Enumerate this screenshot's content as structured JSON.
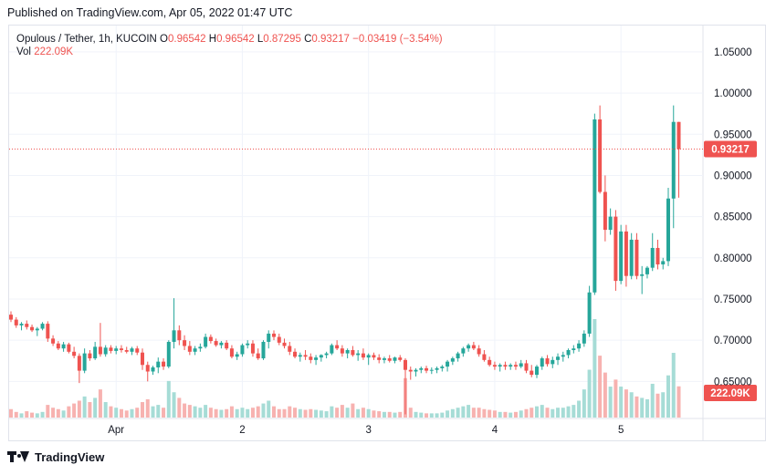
{
  "published": "Published on TradingView.com, Apr 05, 2022 01:47 UTC",
  "legend": {
    "symbol": "Opulous / Tether, 1h, KUCOIN",
    "o_label": "O",
    "o_value": "0.96542",
    "h_label": "H",
    "h_value": "0.96542",
    "l_label": "L",
    "l_value": "0.87295",
    "c_label": "C",
    "c_value": "0.93217",
    "change": "−0.03419 (−3.54%)",
    "vol_label": "Vol",
    "vol_value": "222.09K"
  },
  "footer": {
    "brand": "TradingView"
  },
  "colors": {
    "up": "#26a69a",
    "down": "#ef5350",
    "up_volume": "#a6dcd6",
    "down_volume": "#f7b2b0",
    "grid": "#f0f3fa"
  },
  "chart_data": {
    "type": "candlestick",
    "x_tick_labels": [
      "Apr",
      "2",
      "3",
      "4",
      "5"
    ],
    "y_ticks": [
      "0.65000",
      "0.70000",
      "0.75000",
      "0.80000",
      "0.85000",
      "0.90000",
      "0.95000",
      "1.00000",
      "1.05000"
    ],
    "ylim": [
      0.605,
      1.082
    ],
    "last_price_label": "0.93217",
    "last_volume_label": "222.09K",
    "volume_max": 700,
    "candles": [
      [
        0,
        0.731,
        0.735,
        0.722,
        0.725,
        60
      ],
      [
        1,
        0.725,
        0.728,
        0.715,
        0.718,
        40
      ],
      [
        2,
        0.718,
        0.722,
        0.712,
        0.72,
        30
      ],
      [
        3,
        0.72,
        0.724,
        0.713,
        0.716,
        45
      ],
      [
        4,
        0.716,
        0.719,
        0.71,
        0.712,
        35
      ],
      [
        5,
        0.712,
        0.716,
        0.705,
        0.714,
        30
      ],
      [
        6,
        0.714,
        0.722,
        0.712,
        0.72,
        40
      ],
      [
        7,
        0.72,
        0.723,
        0.698,
        0.702,
        90
      ],
      [
        8,
        0.702,
        0.706,
        0.693,
        0.696,
        70
      ],
      [
        9,
        0.696,
        0.699,
        0.688,
        0.69,
        60
      ],
      [
        10,
        0.69,
        0.698,
        0.686,
        0.695,
        50
      ],
      [
        11,
        0.695,
        0.697,
        0.684,
        0.686,
        80
      ],
      [
        12,
        0.686,
        0.692,
        0.678,
        0.681,
        100
      ],
      [
        13,
        0.681,
        0.684,
        0.648,
        0.663,
        120
      ],
      [
        14,
        0.663,
        0.69,
        0.66,
        0.684,
        150
      ],
      [
        15,
        0.684,
        0.688,
        0.675,
        0.678,
        110
      ],
      [
        16,
        0.678,
        0.698,
        0.676,
        0.692,
        140
      ],
      [
        17,
        0.692,
        0.721,
        0.68,
        0.683,
        200
      ],
      [
        18,
        0.683,
        0.694,
        0.68,
        0.691,
        110
      ],
      [
        19,
        0.691,
        0.694,
        0.684,
        0.687,
        80
      ],
      [
        20,
        0.687,
        0.693,
        0.683,
        0.69,
        70
      ],
      [
        21,
        0.69,
        0.694,
        0.685,
        0.688,
        60
      ],
      [
        22,
        0.688,
        0.692,
        0.684,
        0.686,
        50
      ],
      [
        23,
        0.686,
        0.692,
        0.682,
        0.69,
        60
      ],
      [
        24,
        0.69,
        0.693,
        0.682,
        0.685,
        70
      ],
      [
        25,
        0.685,
        0.69,
        0.664,
        0.67,
        110
      ],
      [
        26,
        0.67,
        0.674,
        0.65,
        0.662,
        130
      ],
      [
        27,
        0.662,
        0.669,
        0.658,
        0.667,
        80
      ],
      [
        28,
        0.667,
        0.679,
        0.66,
        0.674,
        90
      ],
      [
        29,
        0.674,
        0.678,
        0.664,
        0.668,
        70
      ],
      [
        30,
        0.668,
        0.7,
        0.666,
        0.698,
        260
      ],
      [
        31,
        0.698,
        0.751,
        0.69,
        0.712,
        180
      ],
      [
        32,
        0.712,
        0.718,
        0.694,
        0.7,
        140
      ],
      [
        33,
        0.7,
        0.706,
        0.688,
        0.693,
        100
      ],
      [
        34,
        0.693,
        0.699,
        0.682,
        0.686,
        90
      ],
      [
        35,
        0.686,
        0.693,
        0.682,
        0.69,
        80
      ],
      [
        36,
        0.69,
        0.696,
        0.686,
        0.692,
        70
      ],
      [
        37,
        0.692,
        0.708,
        0.69,
        0.704,
        90
      ],
      [
        38,
        0.704,
        0.707,
        0.696,
        0.699,
        70
      ],
      [
        39,
        0.699,
        0.702,
        0.692,
        0.694,
        60
      ],
      [
        40,
        0.694,
        0.699,
        0.69,
        0.697,
        55
      ],
      [
        41,
        0.697,
        0.7,
        0.688,
        0.69,
        60
      ],
      [
        42,
        0.69,
        0.694,
        0.678,
        0.68,
        80
      ],
      [
        43,
        0.68,
        0.686,
        0.676,
        0.683,
        60
      ],
      [
        44,
        0.683,
        0.696,
        0.68,
        0.694,
        70
      ],
      [
        45,
        0.694,
        0.7,
        0.69,
        0.696,
        60
      ],
      [
        46,
        0.696,
        0.7,
        0.68,
        0.684,
        70
      ],
      [
        47,
        0.684,
        0.69,
        0.676,
        0.678,
        80
      ],
      [
        48,
        0.678,
        0.7,
        0.676,
        0.698,
        100
      ],
      [
        49,
        0.698,
        0.712,
        0.69,
        0.708,
        120
      ],
      [
        50,
        0.708,
        0.712,
        0.7,
        0.704,
        80
      ],
      [
        51,
        0.704,
        0.708,
        0.694,
        0.697,
        60
      ],
      [
        52,
        0.697,
        0.702,
        0.69,
        0.693,
        60
      ],
      [
        53,
        0.693,
        0.698,
        0.682,
        0.686,
        80
      ],
      [
        54,
        0.686,
        0.69,
        0.678,
        0.68,
        70
      ],
      [
        55,
        0.68,
        0.685,
        0.674,
        0.682,
        60
      ],
      [
        56,
        0.682,
        0.688,
        0.676,
        0.68,
        55
      ],
      [
        57,
        0.68,
        0.684,
        0.672,
        0.676,
        60
      ],
      [
        58,
        0.676,
        0.682,
        0.67,
        0.679,
        55
      ],
      [
        59,
        0.679,
        0.683,
        0.674,
        0.682,
        50
      ],
      [
        60,
        0.682,
        0.686,
        0.678,
        0.684,
        45
      ],
      [
        61,
        0.684,
        0.696,
        0.682,
        0.694,
        80
      ],
      [
        62,
        0.694,
        0.7,
        0.688,
        0.69,
        70
      ],
      [
        63,
        0.69,
        0.694,
        0.68,
        0.684,
        90
      ],
      [
        64,
        0.684,
        0.69,
        0.678,
        0.688,
        70
      ],
      [
        65,
        0.688,
        0.693,
        0.68,
        0.682,
        100
      ],
      [
        66,
        0.682,
        0.688,
        0.675,
        0.684,
        60
      ],
      [
        67,
        0.684,
        0.69,
        0.676,
        0.679,
        70
      ],
      [
        68,
        0.679,
        0.684,
        0.67,
        0.682,
        60
      ],
      [
        69,
        0.682,
        0.685,
        0.676,
        0.679,
        50
      ],
      [
        70,
        0.679,
        0.683,
        0.672,
        0.676,
        45
      ],
      [
        71,
        0.676,
        0.68,
        0.672,
        0.678,
        40
      ],
      [
        72,
        0.678,
        0.682,
        0.673,
        0.675,
        40
      ],
      [
        73,
        0.675,
        0.68,
        0.672,
        0.679,
        35
      ],
      [
        74,
        0.679,
        0.682,
        0.674,
        0.676,
        40
      ],
      [
        75,
        0.676,
        0.678,
        0.61,
        0.664,
        280
      ],
      [
        76,
        0.664,
        0.668,
        0.652,
        0.662,
        70
      ],
      [
        77,
        0.662,
        0.666,
        0.656,
        0.664,
        40
      ],
      [
        78,
        0.664,
        0.668,
        0.66,
        0.666,
        35
      ],
      [
        79,
        0.666,
        0.669,
        0.66,
        0.663,
        30
      ],
      [
        80,
        0.663,
        0.667,
        0.659,
        0.664,
        30
      ],
      [
        81,
        0.664,
        0.668,
        0.66,
        0.666,
        30
      ],
      [
        82,
        0.666,
        0.67,
        0.662,
        0.668,
        35
      ],
      [
        83,
        0.668,
        0.676,
        0.662,
        0.674,
        50
      ],
      [
        84,
        0.674,
        0.68,
        0.67,
        0.678,
        60
      ],
      [
        85,
        0.678,
        0.686,
        0.674,
        0.684,
        70
      ],
      [
        86,
        0.684,
        0.692,
        0.68,
        0.69,
        80
      ],
      [
        87,
        0.69,
        0.696,
        0.686,
        0.694,
        90
      ],
      [
        88,
        0.694,
        0.698,
        0.688,
        0.69,
        70
      ],
      [
        89,
        0.69,
        0.694,
        0.68,
        0.683,
        70
      ],
      [
        90,
        0.683,
        0.688,
        0.674,
        0.676,
        60
      ],
      [
        91,
        0.676,
        0.68,
        0.668,
        0.67,
        55
      ],
      [
        92,
        0.67,
        0.674,
        0.664,
        0.668,
        50
      ],
      [
        93,
        0.668,
        0.672,
        0.662,
        0.67,
        40
      ],
      [
        94,
        0.67,
        0.674,
        0.664,
        0.668,
        40
      ],
      [
        95,
        0.668,
        0.672,
        0.664,
        0.67,
        35
      ],
      [
        96,
        0.67,
        0.674,
        0.664,
        0.668,
        40
      ],
      [
        97,
        0.668,
        0.676,
        0.666,
        0.672,
        50
      ],
      [
        98,
        0.672,
        0.676,
        0.66,
        0.663,
        60
      ],
      [
        99,
        0.663,
        0.67,
        0.655,
        0.658,
        70
      ],
      [
        100,
        0.658,
        0.67,
        0.654,
        0.668,
        80
      ],
      [
        101,
        0.668,
        0.68,
        0.664,
        0.678,
        90
      ],
      [
        102,
        0.678,
        0.682,
        0.668,
        0.671,
        70
      ],
      [
        103,
        0.671,
        0.68,
        0.666,
        0.676,
        60
      ],
      [
        104,
        0.676,
        0.684,
        0.67,
        0.68,
        70
      ],
      [
        105,
        0.68,
        0.686,
        0.674,
        0.682,
        70
      ],
      [
        106,
        0.682,
        0.69,
        0.678,
        0.688,
        80
      ],
      [
        107,
        0.688,
        0.694,
        0.684,
        0.69,
        90
      ],
      [
        108,
        0.69,
        0.7,
        0.686,
        0.696,
        120
      ],
      [
        109,
        0.696,
        0.712,
        0.692,
        0.708,
        200
      ],
      [
        110,
        0.708,
        0.766,
        0.704,
        0.758,
        340
      ],
      [
        111,
        0.758,
        0.975,
        0.755,
        0.968,
        700
      ],
      [
        112,
        0.968,
        0.985,
        0.878,
        0.88,
        440
      ],
      [
        113,
        0.88,
        0.9,
        0.82,
        0.834,
        320
      ],
      [
        114,
        0.834,
        0.86,
        0.828,
        0.85,
        220
      ],
      [
        115,
        0.85,
        0.858,
        0.76,
        0.772,
        270
      ],
      [
        116,
        0.772,
        0.84,
        0.768,
        0.832,
        220
      ],
      [
        117,
        0.832,
        0.84,
        0.765,
        0.778,
        200
      ],
      [
        118,
        0.778,
        0.83,
        0.774,
        0.822,
        180
      ],
      [
        119,
        0.822,
        0.83,
        0.774,
        0.778,
        150
      ],
      [
        120,
        0.778,
        0.79,
        0.756,
        0.78,
        140
      ],
      [
        121,
        0.78,
        0.79,
        0.775,
        0.788,
        130
      ],
      [
        122,
        0.788,
        0.83,
        0.784,
        0.812,
        240
      ],
      [
        123,
        0.812,
        0.822,
        0.786,
        0.792,
        170
      ],
      [
        124,
        0.792,
        0.8,
        0.786,
        0.796,
        180
      ],
      [
        125,
        0.796,
        0.885,
        0.79,
        0.872,
        300
      ],
      [
        126,
        0.872,
        0.985,
        0.836,
        0.965,
        460
      ],
      [
        127,
        0.965,
        0.965,
        0.873,
        0.932,
        222
      ]
    ]
  }
}
